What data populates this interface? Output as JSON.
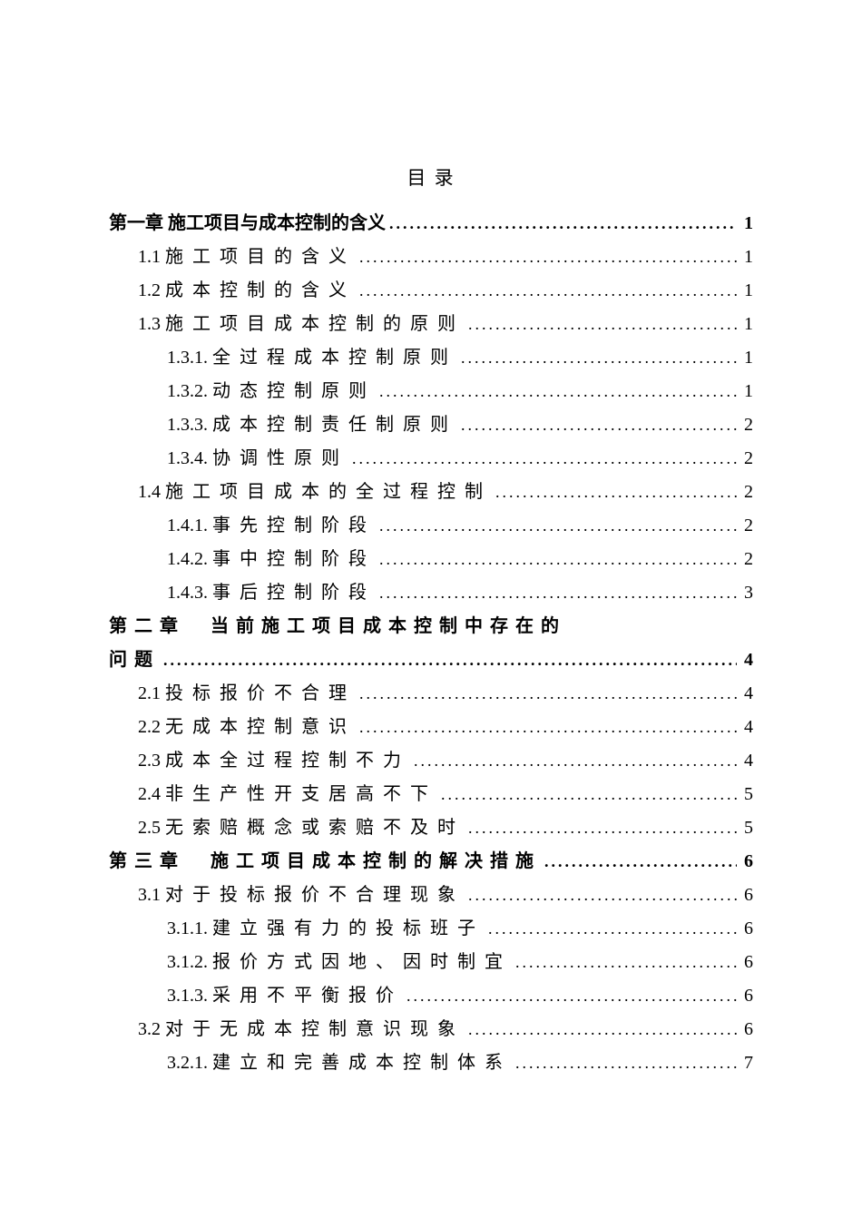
{
  "title": "目 录",
  "entries": [
    {
      "level": 0,
      "bold": true,
      "spacing": "",
      "num": "第一章 ",
      "text": "施工项目与成本控制的含义",
      "page": "1"
    },
    {
      "level": 1,
      "bold": false,
      "spacing": "wide",
      "num": "1.1 ",
      "text": "施工项目的含义",
      "page": "1"
    },
    {
      "level": 1,
      "bold": false,
      "spacing": "wide",
      "num": "1.2 ",
      "text": "成本控制的含义",
      "page": "1"
    },
    {
      "level": 1,
      "bold": false,
      "spacing": "wide",
      "num": "1.3 ",
      "text": "施工项目成本控制的原则",
      "page": "1"
    },
    {
      "level": 2,
      "bold": false,
      "spacing": "wide",
      "num": "1.3.1. ",
      "text": "全过程成本控制原则",
      "page": "1"
    },
    {
      "level": 2,
      "bold": false,
      "spacing": "wide",
      "num": "1.3.2. ",
      "text": "动态控制原则",
      "page": "1"
    },
    {
      "level": 2,
      "bold": false,
      "spacing": "wide",
      "num": "1.3.3. ",
      "text": "成本控制责任制原则",
      "page": "2"
    },
    {
      "level": 2,
      "bold": false,
      "spacing": "wide",
      "num": "1.3.4. ",
      "text": "协调性原则",
      "page": "2"
    },
    {
      "level": 1,
      "bold": false,
      "spacing": "wide",
      "num": "1.4 ",
      "text": "施工项目成本的全过程控制",
      "page": "2"
    },
    {
      "level": 2,
      "bold": false,
      "spacing": "wide",
      "num": "1.4.1. ",
      "text": "事先控制阶段",
      "page": "2"
    },
    {
      "level": 2,
      "bold": false,
      "spacing": "wide",
      "num": "1.4.2. ",
      "text": "事中控制阶段",
      "page": "2"
    },
    {
      "level": 2,
      "bold": false,
      "spacing": "wide",
      "num": "1.4.3. ",
      "text": "事后控制阶段",
      "page": "3"
    },
    {
      "level": 0,
      "bold": true,
      "spacing": "wide2",
      "num": "",
      "text": "第二章　当前施工项目成本控制中存在的问题",
      "page": "4",
      "wrap": true
    },
    {
      "level": 1,
      "bold": false,
      "spacing": "wide",
      "num": "2.1 ",
      "text": "投标报价不合理",
      "page": "4"
    },
    {
      "level": 1,
      "bold": false,
      "spacing": "wide",
      "num": "2.2 ",
      "text": "无成本控制意识",
      "page": "4"
    },
    {
      "level": 1,
      "bold": false,
      "spacing": "wide",
      "num": "2.3 ",
      "text": "成本全过程控制不力",
      "page": "4"
    },
    {
      "level": 1,
      "bold": false,
      "spacing": "wide",
      "num": "2.4 ",
      "text": "非生产性开支居高不下",
      "page": "5"
    },
    {
      "level": 1,
      "bold": false,
      "spacing": "wide",
      "num": "2.5 ",
      "text": "无索赔概念或索赔不及时",
      "page": "5"
    },
    {
      "level": 0,
      "bold": true,
      "spacing": "wide2",
      "num": "",
      "text": "第三章　施工项目成本控制的解决措施",
      "page": "6"
    },
    {
      "level": 1,
      "bold": false,
      "spacing": "wide",
      "num": "3.1 ",
      "text": "对于投标报价不合理现象",
      "page": "6"
    },
    {
      "level": 2,
      "bold": false,
      "spacing": "wide",
      "num": "3.1.1. ",
      "text": "建立强有力的投标班子",
      "page": "6"
    },
    {
      "level": 2,
      "bold": false,
      "spacing": "wide",
      "num": "3.1.2. ",
      "text": "报价方式因地、因时制宜",
      "page": "6"
    },
    {
      "level": 2,
      "bold": false,
      "spacing": "wide",
      "num": "3.1.3. ",
      "text": "采用不平衡报价",
      "page": "6"
    },
    {
      "level": 1,
      "bold": false,
      "spacing": "wide",
      "num": "3.2 ",
      "text": "对于无成本控制意识现象",
      "page": "6"
    },
    {
      "level": 2,
      "bold": false,
      "spacing": "wide",
      "num": "3.2.1. ",
      "text": "建立和完善成本控制体系",
      "page": "7"
    }
  ]
}
